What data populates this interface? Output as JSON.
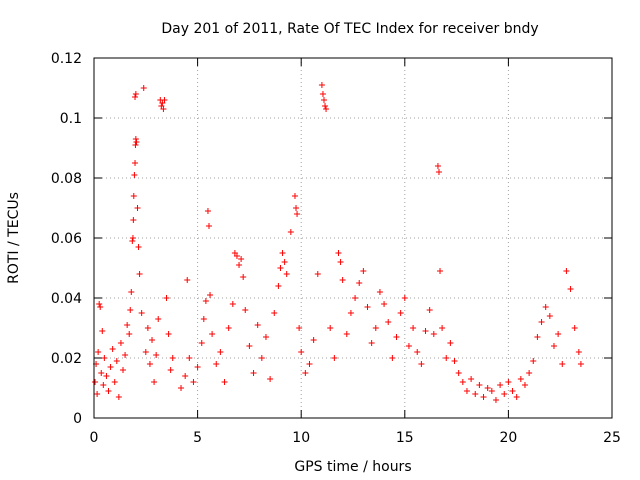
{
  "chart_data": {
    "type": "scatter",
    "title": "Day 201 of 2011, Rate Of TEC Index for receiver bndy",
    "xlabel": "GPS time / hours",
    "ylabel": "ROTI / TECUs",
    "xlim": [
      0,
      25
    ],
    "ylim": [
      0,
      0.12
    ],
    "xticks": [
      0,
      5,
      10,
      15,
      20,
      25
    ],
    "xtick_labels": [
      "0",
      "5",
      "10",
      "15",
      "20",
      "25"
    ],
    "yticks": [
      0,
      0.02,
      0.04,
      0.06,
      0.08,
      0.1,
      0.12
    ],
    "ytick_labels": [
      "0",
      "0.02",
      "0.04",
      "0.06",
      "0.08",
      "0.1",
      "0.12"
    ],
    "grid": true,
    "marker": "plus",
    "color": "#ff0000",
    "series": [
      {
        "points": [
          [
            0.05,
            0.012
          ],
          [
            0.1,
            0.018
          ],
          [
            0.15,
            0.008
          ],
          [
            0.2,
            0.022
          ],
          [
            0.25,
            0.038
          ],
          [
            0.3,
            0.037
          ],
          [
            0.35,
            0.015
          ],
          [
            0.4,
            0.029
          ],
          [
            0.45,
            0.011
          ],
          [
            0.5,
            0.02
          ],
          [
            0.6,
            0.014
          ],
          [
            0.7,
            0.009
          ],
          [
            0.8,
            0.017
          ],
          [
            0.9,
            0.023
          ],
          [
            1.0,
            0.012
          ],
          [
            1.1,
            0.019
          ],
          [
            1.2,
            0.007
          ],
          [
            1.3,
            0.025
          ],
          [
            1.4,
            0.016
          ],
          [
            1.5,
            0.021
          ],
          [
            1.6,
            0.031
          ],
          [
            1.7,
            0.028
          ],
          [
            1.75,
            0.036
          ],
          [
            1.8,
            0.042
          ],
          [
            1.85,
            0.059
          ],
          [
            1.88,
            0.06
          ],
          [
            1.9,
            0.066
          ],
          [
            1.92,
            0.074
          ],
          [
            1.95,
            0.081
          ],
          [
            1.98,
            0.085
          ],
          [
            2.0,
            0.091
          ],
          [
            2.02,
            0.093
          ],
          [
            2.05,
            0.092
          ],
          [
            1.98,
            0.107
          ],
          [
            2.02,
            0.108
          ],
          [
            2.1,
            0.07
          ],
          [
            2.15,
            0.057
          ],
          [
            2.2,
            0.048
          ],
          [
            2.3,
            0.035
          ],
          [
            2.4,
            0.11
          ],
          [
            2.5,
            0.022
          ],
          [
            2.6,
            0.03
          ],
          [
            2.7,
            0.018
          ],
          [
            2.8,
            0.026
          ],
          [
            2.9,
            0.012
          ],
          [
            3.0,
            0.021
          ],
          [
            3.1,
            0.033
          ],
          [
            3.2,
            0.106
          ],
          [
            3.25,
            0.104
          ],
          [
            3.3,
            0.105
          ],
          [
            3.35,
            0.103
          ],
          [
            3.4,
            0.106
          ],
          [
            3.5,
            0.04
          ],
          [
            3.6,
            0.028
          ],
          [
            3.7,
            0.016
          ],
          [
            3.8,
            0.02
          ],
          [
            4.2,
            0.01
          ],
          [
            4.4,
            0.014
          ],
          [
            4.5,
            0.046
          ],
          [
            4.6,
            0.02
          ],
          [
            4.8,
            0.012
          ],
          [
            5.0,
            0.017
          ],
          [
            5.2,
            0.025
          ],
          [
            5.3,
            0.033
          ],
          [
            5.4,
            0.039
          ],
          [
            5.5,
            0.069
          ],
          [
            5.55,
            0.064
          ],
          [
            5.6,
            0.041
          ],
          [
            5.7,
            0.028
          ],
          [
            5.9,
            0.018
          ],
          [
            6.1,
            0.022
          ],
          [
            6.3,
            0.012
          ],
          [
            6.5,
            0.03
          ],
          [
            6.7,
            0.038
          ],
          [
            6.8,
            0.055
          ],
          [
            6.9,
            0.054
          ],
          [
            7.0,
            0.051
          ],
          [
            7.1,
            0.053
          ],
          [
            7.2,
            0.047
          ],
          [
            7.3,
            0.036
          ],
          [
            7.5,
            0.024
          ],
          [
            7.7,
            0.015
          ],
          [
            7.9,
            0.031
          ],
          [
            8.1,
            0.02
          ],
          [
            8.3,
            0.027
          ],
          [
            8.5,
            0.013
          ],
          [
            8.7,
            0.035
          ],
          [
            8.9,
            0.044
          ],
          [
            9.0,
            0.05
          ],
          [
            9.1,
            0.055
          ],
          [
            9.2,
            0.052
          ],
          [
            9.3,
            0.048
          ],
          [
            9.5,
            0.062
          ],
          [
            9.7,
            0.074
          ],
          [
            9.75,
            0.07
          ],
          [
            9.8,
            0.068
          ],
          [
            9.9,
            0.03
          ],
          [
            10.0,
            0.022
          ],
          [
            10.2,
            0.015
          ],
          [
            10.4,
            0.018
          ],
          [
            10.6,
            0.026
          ],
          [
            10.8,
            0.048
          ],
          [
            11.0,
            0.111
          ],
          [
            11.05,
            0.108
          ],
          [
            11.1,
            0.106
          ],
          [
            11.15,
            0.104
          ],
          [
            11.2,
            0.103
          ],
          [
            11.4,
            0.03
          ],
          [
            11.6,
            0.02
          ],
          [
            11.8,
            0.055
          ],
          [
            11.9,
            0.052
          ],
          [
            12.0,
            0.046
          ],
          [
            12.2,
            0.028
          ],
          [
            12.4,
            0.035
          ],
          [
            12.6,
            0.04
          ],
          [
            12.8,
            0.045
          ],
          [
            13.0,
            0.049
          ],
          [
            13.2,
            0.037
          ],
          [
            13.4,
            0.025
          ],
          [
            13.6,
            0.03
          ],
          [
            13.8,
            0.042
          ],
          [
            14.0,
            0.038
          ],
          [
            14.2,
            0.032
          ],
          [
            14.4,
            0.02
          ],
          [
            14.6,
            0.027
          ],
          [
            14.8,
            0.035
          ],
          [
            15.0,
            0.04
          ],
          [
            15.2,
            0.024
          ],
          [
            15.4,
            0.03
          ],
          [
            15.6,
            0.022
          ],
          [
            15.8,
            0.018
          ],
          [
            16.0,
            0.029
          ],
          [
            16.2,
            0.036
          ],
          [
            16.4,
            0.028
          ],
          [
            16.6,
            0.084
          ],
          [
            16.65,
            0.082
          ],
          [
            16.7,
            0.049
          ],
          [
            16.8,
            0.03
          ],
          [
            17.0,
            0.02
          ],
          [
            17.2,
            0.025
          ],
          [
            17.4,
            0.019
          ],
          [
            17.6,
            0.015
          ],
          [
            17.8,
            0.012
          ],
          [
            18.0,
            0.009
          ],
          [
            18.2,
            0.013
          ],
          [
            18.4,
            0.008
          ],
          [
            18.6,
            0.011
          ],
          [
            18.8,
            0.007
          ],
          [
            19.0,
            0.01
          ],
          [
            19.2,
            0.009
          ],
          [
            19.4,
            0.006
          ],
          [
            19.6,
            0.011
          ],
          [
            19.8,
            0.008
          ],
          [
            20.0,
            0.012
          ],
          [
            20.2,
            0.009
          ],
          [
            20.4,
            0.007
          ],
          [
            20.6,
            0.013
          ],
          [
            20.8,
            0.011
          ],
          [
            21.0,
            0.015
          ],
          [
            21.2,
            0.019
          ],
          [
            21.4,
            0.027
          ],
          [
            21.6,
            0.032
          ],
          [
            21.8,
            0.037
          ],
          [
            22.0,
            0.034
          ],
          [
            22.2,
            0.024
          ],
          [
            22.4,
            0.028
          ],
          [
            22.6,
            0.018
          ],
          [
            22.8,
            0.049
          ],
          [
            23.0,
            0.043
          ],
          [
            23.2,
            0.03
          ],
          [
            23.4,
            0.022
          ],
          [
            23.5,
            0.018
          ]
        ]
      }
    ]
  }
}
